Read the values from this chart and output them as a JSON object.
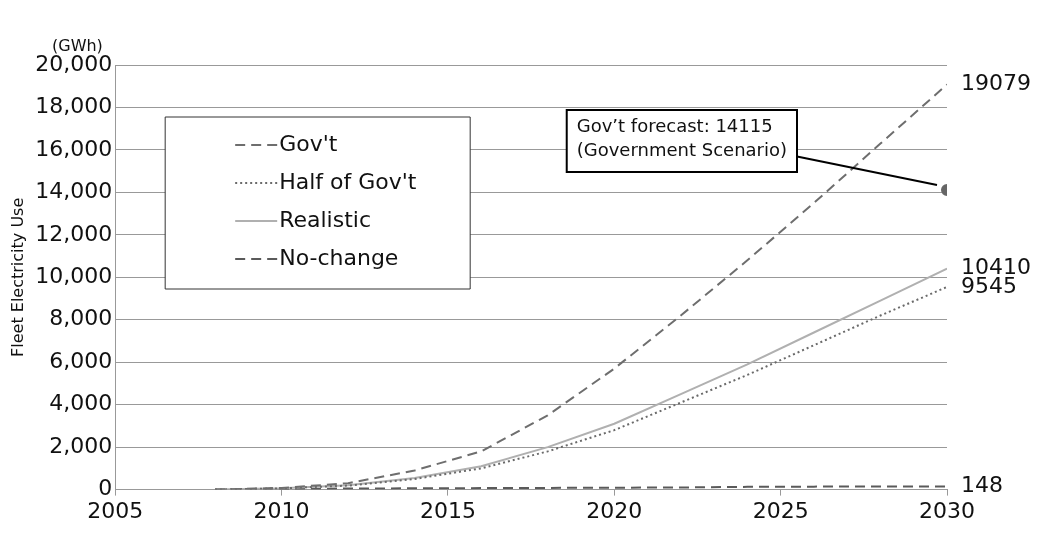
{
  "chart_data": {
    "type": "line",
    "ylabel": "Fleet Electricity Use",
    "annotations": [
      "(GWh)",
      "Gov’t forecast: 14115\n(Government Scenario)"
    ],
    "x": [
      2008,
      2010,
      2012,
      2014,
      2016,
      2018,
      2020,
      2022,
      2024,
      2026,
      2028,
      2030
    ],
    "series": [
      {
        "name": "Gov't",
        "color": "#6e6e6e",
        "line_style": "dashed",
        "values": [
          0,
          80,
          300,
          900,
          1800,
          3500,
          5700,
          8200,
          10800,
          13500,
          16300,
          19079
        ],
        "value_labels": [
          null,
          null,
          null,
          null,
          null,
          null,
          null,
          null,
          null,
          null,
          null,
          "19079"
        ]
      },
      {
        "name": "Half of Gov't",
        "color": "#6a6a6a",
        "line_style": "dotted",
        "values": [
          0,
          60,
          190,
          500,
          1000,
          1800,
          2800,
          4100,
          5400,
          6800,
          8200,
          9545
        ],
        "value_labels": [
          null,
          null,
          null,
          null,
          null,
          null,
          null,
          null,
          null,
          null,
          null,
          "9545"
        ]
      },
      {
        "name": "Realistic",
        "color": "#b0b0b0",
        "line_style": "solid",
        "values": [
          0,
          60,
          200,
          550,
          1100,
          2000,
          3100,
          4500,
          5900,
          7400,
          8900,
          10410
        ],
        "value_labels": [
          null,
          null,
          null,
          null,
          null,
          null,
          null,
          null,
          null,
          null,
          null,
          "10410"
        ]
      },
      {
        "name": "No-change",
        "color": "#5a5a5a",
        "line_style": "dashed",
        "values": [
          0,
          30,
          50,
          60,
          70,
          80,
          90,
          100,
          130,
          140,
          150,
          148
        ],
        "value_labels": [
          null,
          null,
          null,
          null,
          null,
          null,
          null,
          null,
          null,
          null,
          null,
          "148"
        ]
      },
      {
        "type": "scatter",
        "color": "#666666",
        "marker": "circle",
        "x": [
          2030
        ],
        "values": [
          14115
        ]
      }
    ],
    "xlim": [
      2005,
      2030
    ],
    "xticks": [
      2005,
      2010,
      2015,
      2020,
      2025,
      2030
    ],
    "ylim": [
      0,
      20000
    ],
    "yticks": [
      {
        "value": 0,
        "label": "0"
      },
      {
        "value": 2000,
        "label": "2,000"
      },
      {
        "value": 4000,
        "label": "4,000"
      },
      {
        "value": 6000,
        "label": "6,000"
      },
      {
        "value": 8000,
        "label": "8,000"
      },
      {
        "value": 10000,
        "label": "10,000"
      },
      {
        "value": 12000,
        "label": "12,000"
      },
      {
        "value": 14000,
        "label": "14,000"
      },
      {
        "value": 16000,
        "label": "16,000"
      },
      {
        "value": 18000,
        "label": "18,000"
      },
      {
        "value": 20000,
        "label": "20,000"
      }
    ],
    "grid": "y",
    "legend": "top left"
  }
}
